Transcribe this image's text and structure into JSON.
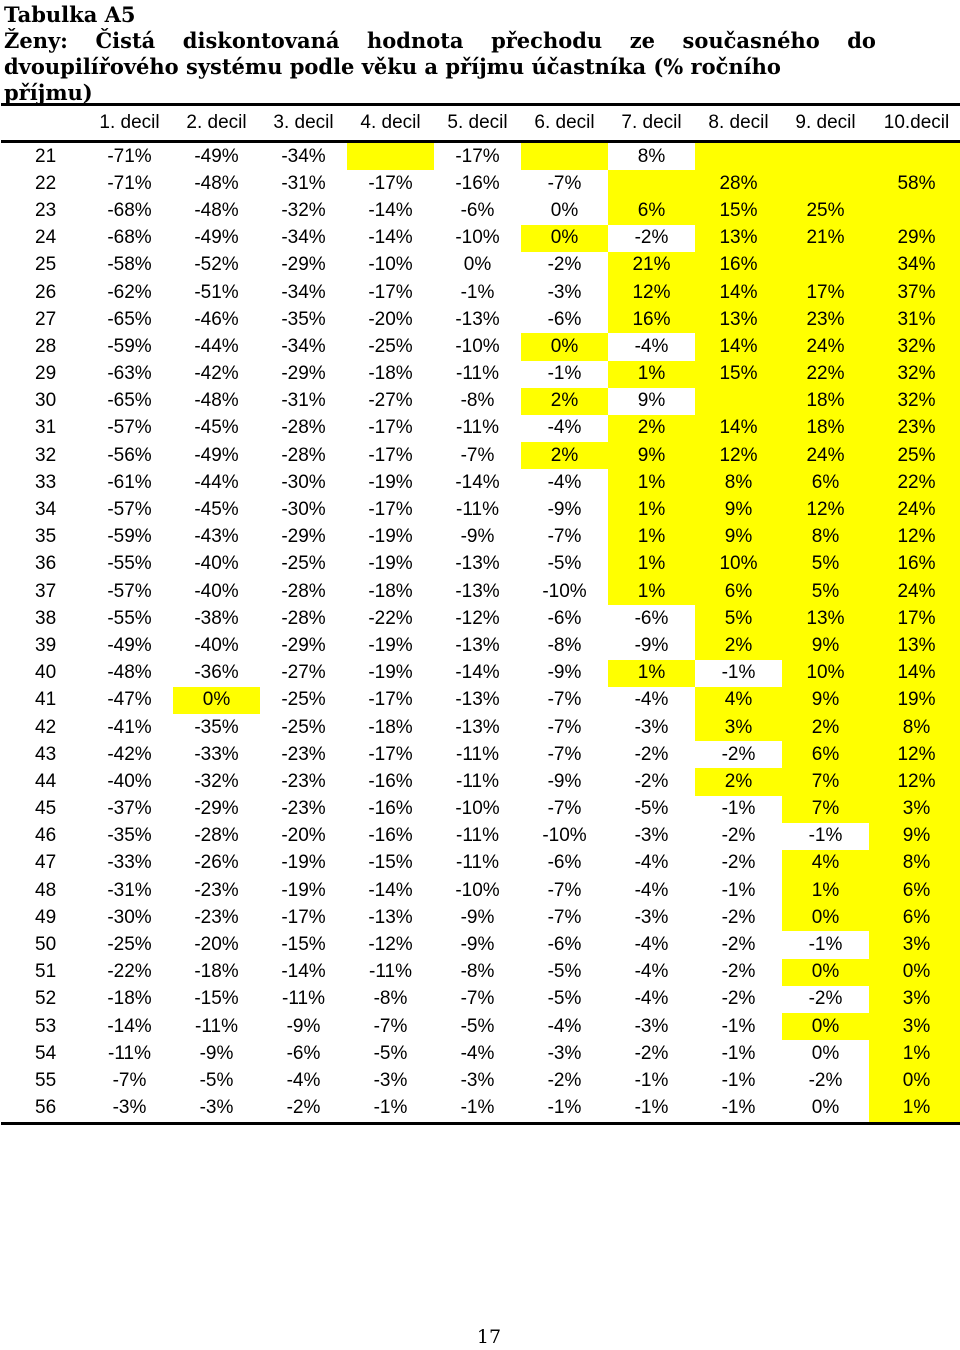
{
  "title": {
    "line1": "Tabulka A5",
    "line2_words": [
      "Ženy:",
      "Čistá",
      "diskontovaná",
      "hodnota",
      "přechodu",
      "ze",
      "současného",
      "do"
    ],
    "line3": "dvoupilířového systému podle věku a příjmu účastníka (% ročního příjmu)"
  },
  "table": {
    "headers": [
      "",
      "1. decil",
      "2. decil",
      "3. decil",
      "4. decil",
      "5. decil",
      "6. decil",
      "7. decil",
      "8. decil",
      "9. decil",
      "10.decil"
    ],
    "rows": [
      {
        "age": "21",
        "values": [
          "-71%",
          "-49%",
          "-34%",
          "",
          "-17%",
          "",
          "8%",
          "",
          "",
          ""
        ]
      },
      {
        "age": "22",
        "values": [
          "-71%",
          "-48%",
          "-31%",
          "-17%",
          "-16%",
          "-7%",
          "",
          "28%",
          "",
          "58%"
        ]
      },
      {
        "age": "23",
        "values": [
          "-68%",
          "-48%",
          "-32%",
          "-14%",
          "-6%",
          "0%",
          "6%",
          "15%",
          "25%",
          ""
        ]
      },
      {
        "age": "24",
        "values": [
          "-68%",
          "-49%",
          "-34%",
          "-14%",
          "-10%",
          "0%",
          "-2%",
          "13%",
          "21%",
          "29%"
        ]
      },
      {
        "age": "25",
        "values": [
          "-58%",
          "-52%",
          "-29%",
          "-10%",
          "0%",
          "-2%",
          "21%",
          "16%",
          "",
          "34%"
        ]
      },
      {
        "age": "26",
        "values": [
          "-62%",
          "-51%",
          "-34%",
          "-17%",
          "-1%",
          "-3%",
          "12%",
          "14%",
          "17%",
          "37%"
        ]
      },
      {
        "age": "27",
        "values": [
          "-65%",
          "-46%",
          "-35%",
          "-20%",
          "-13%",
          "-6%",
          "16%",
          "13%",
          "23%",
          "31%"
        ]
      },
      {
        "age": "28",
        "values": [
          "-59%",
          "-44%",
          "-34%",
          "-25%",
          "-10%",
          "0%",
          "-4%",
          "14%",
          "24%",
          "32%"
        ]
      },
      {
        "age": "29",
        "values": [
          "-63%",
          "-42%",
          "-29%",
          "-18%",
          "-11%",
          "-1%",
          "1%",
          "15%",
          "22%",
          "32%"
        ]
      },
      {
        "age": "30",
        "values": [
          "-65%",
          "-48%",
          "-31%",
          "-27%",
          "-8%",
          "2%",
          "9%",
          "",
          "18%",
          "32%"
        ]
      },
      {
        "age": "31",
        "values": [
          "-57%",
          "-45%",
          "-28%",
          "-17%",
          "-11%",
          "-4%",
          "2%",
          "14%",
          "18%",
          "23%"
        ]
      },
      {
        "age": "32",
        "values": [
          "-56%",
          "-49%",
          "-28%",
          "-17%",
          "-7%",
          "2%",
          "9%",
          "12%",
          "24%",
          "25%"
        ]
      },
      {
        "age": "33",
        "values": [
          "-61%",
          "-44%",
          "-30%",
          "-19%",
          "-14%",
          "-4%",
          "1%",
          "8%",
          "6%",
          "22%"
        ]
      },
      {
        "age": "34",
        "values": [
          "-57%",
          "-45%",
          "-30%",
          "-17%",
          "-11%",
          "-9%",
          "1%",
          "9%",
          "12%",
          "24%"
        ]
      },
      {
        "age": "35",
        "values": [
          "-59%",
          "-43%",
          "-29%",
          "-19%",
          "-9%",
          "-7%",
          "1%",
          "9%",
          "8%",
          "12%"
        ]
      },
      {
        "age": "36",
        "values": [
          "-55%",
          "-40%",
          "-25%",
          "-19%",
          "-13%",
          "-5%",
          "1%",
          "10%",
          "5%",
          "16%"
        ]
      },
      {
        "age": "37",
        "values": [
          "-57%",
          "-40%",
          "-28%",
          "-18%",
          "-13%",
          "-10%",
          "1%",
          "6%",
          "5%",
          "24%"
        ]
      },
      {
        "age": "38",
        "values": [
          "-55%",
          "-38%",
          "-28%",
          "-22%",
          "-12%",
          "-6%",
          "-6%",
          "5%",
          "13%",
          "17%"
        ]
      },
      {
        "age": "39",
        "values": [
          "-49%",
          "-40%",
          "-29%",
          "-19%",
          "-13%",
          "-8%",
          "-9%",
          "2%",
          "9%",
          "13%"
        ]
      },
      {
        "age": "40",
        "values": [
          "-48%",
          "-36%",
          "-27%",
          "-19%",
          "-14%",
          "-9%",
          "1%",
          "-1%",
          "10%",
          "14%"
        ]
      },
      {
        "age": "41",
        "values": [
          "-47%",
          "0%",
          "-25%",
          "-17%",
          "-13%",
          "-7%",
          "-4%",
          "4%",
          "9%",
          "19%"
        ]
      },
      {
        "age": "42",
        "values": [
          "-41%",
          "-35%",
          "-25%",
          "-18%",
          "-13%",
          "-7%",
          "-3%",
          "3%",
          "2%",
          "8%"
        ]
      },
      {
        "age": "43",
        "values": [
          "-42%",
          "-33%",
          "-23%",
          "-17%",
          "-11%",
          "-7%",
          "-2%",
          "-2%",
          "6%",
          "12%"
        ]
      },
      {
        "age": "44",
        "values": [
          "-40%",
          "-32%",
          "-23%",
          "-16%",
          "-11%",
          "-9%",
          "-2%",
          "2%",
          "7%",
          "12%"
        ]
      },
      {
        "age": "45",
        "values": [
          "-37%",
          "-29%",
          "-23%",
          "-16%",
          "-10%",
          "-7%",
          "-5%",
          "-1%",
          "7%",
          "3%"
        ]
      },
      {
        "age": "46",
        "values": [
          "-35%",
          "-28%",
          "-20%",
          "-16%",
          "-11%",
          "-10%",
          "-3%",
          "-2%",
          "-1%",
          "9%"
        ]
      },
      {
        "age": "47",
        "values": [
          "-33%",
          "-26%",
          "-19%",
          "-15%",
          "-11%",
          "-6%",
          "-4%",
          "-2%",
          "4%",
          "8%"
        ]
      },
      {
        "age": "48",
        "values": [
          "-31%",
          "-23%",
          "-19%",
          "-14%",
          "-10%",
          "-7%",
          "-4%",
          "-1%",
          "1%",
          "6%"
        ]
      },
      {
        "age": "49",
        "values": [
          "-30%",
          "-23%",
          "-17%",
          "-13%",
          "-9%",
          "-7%",
          "-3%",
          "-2%",
          "0%",
          "6%"
        ]
      },
      {
        "age": "50",
        "values": [
          "-25%",
          "-20%",
          "-15%",
          "-12%",
          "-9%",
          "-6%",
          "-4%",
          "-2%",
          "-1%",
          "3%"
        ]
      },
      {
        "age": "51",
        "values": [
          "-22%",
          "-18%",
          "-14%",
          "-11%",
          "-8%",
          "-5%",
          "-4%",
          "-2%",
          "0%",
          "0%"
        ]
      },
      {
        "age": "52",
        "values": [
          "-18%",
          "-15%",
          "-11%",
          "-8%",
          "-7%",
          "-5%",
          "-4%",
          "-2%",
          "-2%",
          "3%"
        ]
      },
      {
        "age": "53",
        "values": [
          "-14%",
          "-11%",
          "-9%",
          "-7%",
          "-5%",
          "-4%",
          "-3%",
          "-1%",
          "0%",
          "3%"
        ]
      },
      {
        "age": "54",
        "values": [
          "-11%",
          "-9%",
          "-6%",
          "-5%",
          "-4%",
          "-3%",
          "-2%",
          "-1%",
          "0%",
          "1%"
        ]
      },
      {
        "age": "55",
        "values": [
          "-7%",
          "-5%",
          "-4%",
          "-3%",
          "-3%",
          "-2%",
          "-1%",
          "-1%",
          "-2%",
          "0%"
        ]
      },
      {
        "age": "56",
        "values": [
          "-3%",
          "-3%",
          "-2%",
          "-1%",
          "-1%",
          "-1%",
          "-1%",
          "-1%",
          "0%",
          "1%"
        ]
      }
    ],
    "highlight_color": "#ffff00",
    "highlighted_cells": {
      "21": [
        3,
        5,
        7,
        8,
        9
      ],
      "22": [
        6,
        7,
        8,
        9
      ],
      "23": [
        6,
        7,
        8,
        9
      ],
      "24": [
        5,
        7,
        8,
        9
      ],
      "25": [
        6,
        7,
        8,
        9
      ],
      "26": [
        6,
        7,
        8,
        9
      ],
      "27": [
        6,
        7,
        8,
        9
      ],
      "28": [
        5,
        7,
        8,
        9
      ],
      "29": [
        6,
        7,
        8,
        9
      ],
      "30": [
        5,
        7,
        8,
        9
      ],
      "31": [
        6,
        7,
        8,
        9
      ],
      "32": [
        5,
        6,
        7,
        8,
        9
      ],
      "33": [
        6,
        7,
        8,
        9
      ],
      "34": [
        6,
        7,
        8,
        9
      ],
      "35": [
        6,
        7,
        8,
        9
      ],
      "36": [
        6,
        7,
        8,
        9
      ],
      "37": [
        6,
        7,
        8,
        9
      ],
      "38": [
        7,
        8,
        9
      ],
      "39": [
        7,
        8,
        9
      ],
      "40": [
        6,
        8,
        9
      ],
      "41": [
        1,
        7,
        8,
        9
      ],
      "42": [
        7,
        8,
        9
      ],
      "43": [
        8,
        9
      ],
      "44": [
        7,
        8,
        9
      ],
      "45": [
        8,
        9
      ],
      "46": [
        9
      ],
      "47": [
        8,
        9
      ],
      "48": [
        8,
        9
      ],
      "49": [
        8,
        9
      ],
      "50": [
        9
      ],
      "51": [
        8,
        9
      ],
      "52": [
        9
      ],
      "53": [
        8,
        9
      ],
      "54": [
        9
      ],
      "55": [
        9
      ],
      "56": [
        9
      ]
    }
  },
  "page_number": "17"
}
